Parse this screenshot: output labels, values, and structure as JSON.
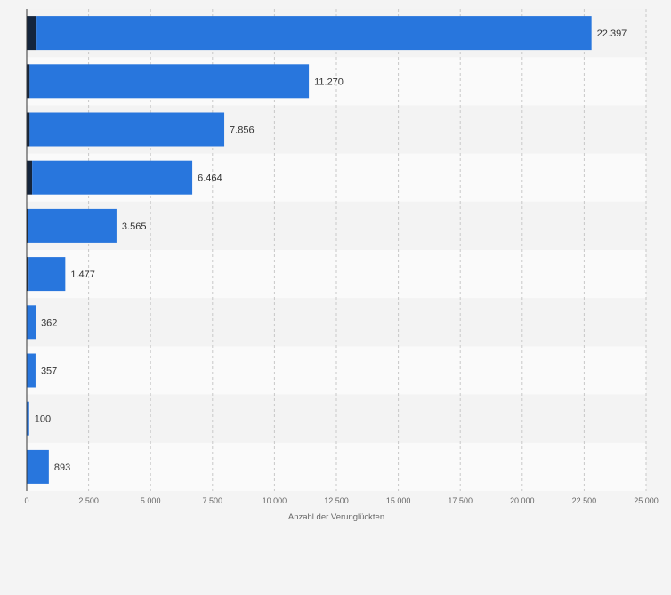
{
  "chart_data": {
    "type": "bar",
    "orientation": "horizontal",
    "categories": [
      "",
      "",
      "",
      "",
      "",
      "",
      "",
      "",
      "",
      ""
    ],
    "series": [
      {
        "values": [
          400,
          120,
          120,
          220,
          60,
          80,
          0,
          0,
          0,
          0
        ]
      },
      {
        "values": [
          22397,
          11270,
          7856,
          6464,
          3565,
          1477,
          362,
          357,
          100,
          893
        ]
      }
    ],
    "value_labels": [
      "22.397",
      "11.270",
      "7.856",
      "6.464",
      "3.565",
      "1.477",
      "362",
      "357",
      "100",
      "893"
    ],
    "xlabel": "Anzahl der Verunglückten",
    "xlim": [
      0,
      25000
    ],
    "xticks": [
      0,
      2500,
      5000,
      7500,
      10000,
      12500,
      15000,
      17500,
      20000,
      22500,
      25000
    ],
    "xtick_labels": [
      "0",
      "2.500",
      "5.000",
      "7.500",
      "10.000",
      "12.500",
      "15.000",
      "17.500",
      "20.000",
      "22.500",
      "25.000"
    ],
    "grid": true,
    "legend": "none",
    "colors": {
      "series_dark": "#14253d",
      "series_main": "#2876dd",
      "grid": "#c8c8c8",
      "row_band_a": "#f3f3f3",
      "row_band_b": "#fafafa",
      "background": "#f4f4f4"
    }
  }
}
